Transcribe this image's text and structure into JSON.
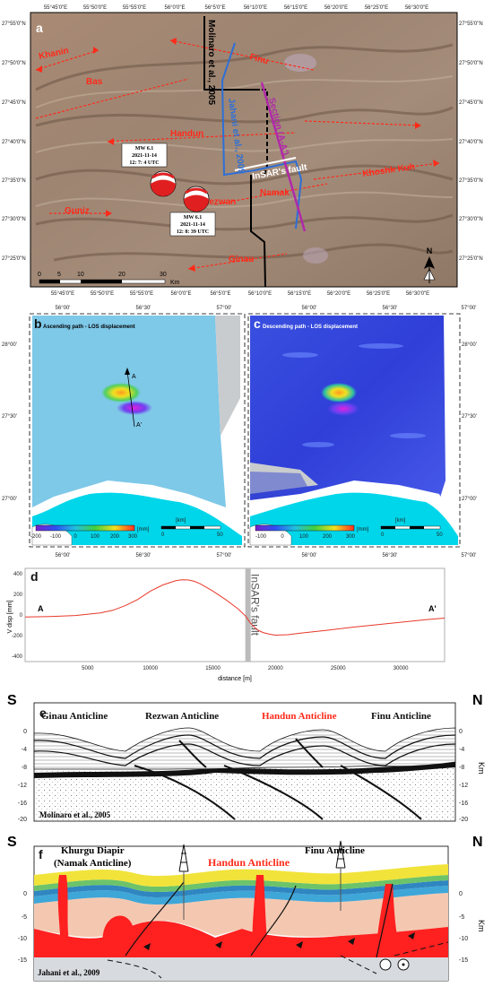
{
  "panel_a": {
    "letter": "a",
    "lon_ticks": [
      "55°45'0\"E",
      "55°50'0\"E",
      "55°55'0\"E",
      "56°0'0\"E",
      "56°5'0\"E",
      "56°10'0\"E",
      "56°15'0\"E",
      "56°20'0\"E",
      "56°25'0\"E",
      "56°30'0\"E"
    ],
    "lat_ticks": [
      "27°55'0\"N",
      "27°50'0\"N",
      "27°45'0\"N",
      "27°40'0\"N",
      "27°35'0\"N",
      "27°30'0\"N",
      "27°25'0\"N"
    ],
    "labels": {
      "khanin": "Khanin",
      "bas": "Bas",
      "handun": "Handun",
      "finu": "Finu",
      "rezwan": "Rezwan",
      "namak": "Namak",
      "khoshk": "Khoshk Kuh",
      "guniz": "Guniz",
      "ginau": "Ginau",
      "molinaro": "Molinaro et al., 2005",
      "jahani": "Jahani et al., 2009",
      "section": "Section (A-A')",
      "insar": "InSAR's fault"
    },
    "event1": {
      "mw": "MW 6.1",
      "date": "2021-11-14",
      "time": "12: 7: 4 UTC"
    },
    "event2": {
      "mw": "MW 6.1",
      "date": "2021-11-14",
      "time": "12: 8: 39 UTC"
    },
    "scale_ticks": [
      "0",
      "5",
      "10",
      "20",
      "30"
    ],
    "scale_unit": "Km",
    "north": "N"
  },
  "panel_b": {
    "letter": "b",
    "title": "Ascending path - LOS displacement",
    "lon_ticks": [
      "56°00'",
      "56°30'",
      "57°00'"
    ],
    "lat_ticks": [
      "28°00'",
      "27°30'",
      "27°00'"
    ],
    "colorbar_ticks": [
      "-200",
      "-100",
      "0",
      "100",
      "200",
      "300"
    ],
    "colorbar_unit": "[mm]",
    "scale_unit": "[km]",
    "scale_ticks": [
      "0",
      "50"
    ],
    "a_label": "A",
    "a2_label": "A'"
  },
  "panel_c": {
    "letter": "c",
    "title": "Descending path - LOS displacement",
    "lon_ticks": [
      "56°00'",
      "56°30'",
      "57°00'"
    ],
    "lat_ticks": [
      "28°00'",
      "27°30'",
      "27°00'"
    ],
    "colorbar_ticks": [
      "-100",
      "0",
      "100",
      "200",
      "300"
    ],
    "colorbar_unit": "[mm]",
    "scale_unit": "[km]",
    "scale_ticks": [
      "0",
      "50"
    ]
  },
  "panel_d": {
    "letter": "d",
    "fault_label": "InSAR's fault",
    "a_label": "A",
    "a2_label": "A'"
  },
  "chart_data": {
    "type": "line",
    "xlabel": "distance [m]",
    "ylabel": "V disp [mm]",
    "xlim": [
      0,
      33500
    ],
    "ylim": [
      -450,
      450
    ],
    "xticks": [
      5000,
      10000,
      15000,
      20000,
      25000,
      30000
    ],
    "yticks": [
      -400,
      -200,
      0,
      200,
      400
    ],
    "fault_x": 17800,
    "color": "#e8392a",
    "x": [
      0,
      2000,
      4000,
      6000,
      7000,
      8000,
      9000,
      10000,
      11000,
      12000,
      12500,
      13000,
      13500,
      14000,
      15000,
      16000,
      17000,
      17600,
      18000,
      18500,
      19000,
      19500,
      20000,
      21000,
      22000,
      24000,
      26000,
      28000,
      30000,
      32000,
      33500
    ],
    "y": [
      -20,
      -15,
      -5,
      20,
      45,
      90,
      150,
      230,
      290,
      330,
      340,
      338,
      325,
      300,
      230,
      150,
      60,
      -10,
      -80,
      -140,
      -170,
      -185,
      -195,
      -190,
      -175,
      -150,
      -120,
      -95,
      -70,
      -45,
      -30
    ]
  },
  "panel_e": {
    "letter": "e",
    "s": "S",
    "n": "N",
    "ginau": "Ginau Anticline",
    "rezwan": "Rezwan Anticline",
    "handun": "Handun Anticline",
    "finu": "Finu Anticline",
    "credit": "Molinaro et al., 2005",
    "yticks": [
      "0",
      "-4",
      "-8",
      "-12",
      "-16",
      "-20"
    ],
    "unit": "Km"
  },
  "panel_f": {
    "letter": "f",
    "s": "S",
    "n": "N",
    "khurgu": "Khurgu Diapir",
    "namak": "(Namak Anticline)",
    "handun": "Handun Anticline",
    "finu": "Finu Anticline",
    "credit": "Jahani et al., 2009",
    "yticks": [
      "0",
      "-5",
      "-10",
      "-15"
    ],
    "unit": "Km"
  },
  "colors": {
    "red_label": "#ff2a1a",
    "blue_fault": "#2d6fd6",
    "purple_section": "#b02aa8",
    "profile": "#e8392a"
  }
}
